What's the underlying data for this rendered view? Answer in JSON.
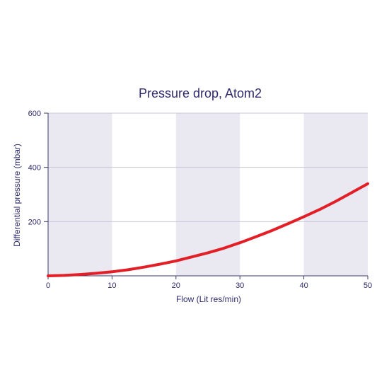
{
  "chart_data": {
    "type": "line",
    "title": "Pressure drop, Atom2",
    "xlabel": "Flow (Lit res/min)",
    "ylabel": "Differential pressure (mbar)",
    "xlim": [
      0,
      50
    ],
    "ylim": [
      0,
      600
    ],
    "x_ticks": [
      0,
      10,
      20,
      30,
      40,
      50
    ],
    "x_tick_labels": [
      "0",
      "10",
      "20",
      "30",
      "40",
      "50"
    ],
    "y_ticks": [
      200,
      400,
      600
    ],
    "y_tick_labels": [
      "200",
      "400",
      "600"
    ],
    "grid": "horizontal",
    "shaded_bands": [
      [
        0,
        10
      ],
      [
        20,
        30
      ],
      [
        40,
        50
      ]
    ],
    "colors": {
      "band": "#eae8f1",
      "grid": "#c9c7d6",
      "axis": "#3a3a6e",
      "text": "#2e2a6b",
      "line": "#e21f26"
    },
    "series": [
      {
        "x": [
          0,
          2.5,
          5,
          7.5,
          10,
          12.5,
          15,
          17.5,
          20,
          22.5,
          25,
          27.5,
          30,
          32.5,
          35,
          37.5,
          40,
          42.5,
          45,
          47.5,
          50
        ],
        "values": [
          0,
          1.5,
          5,
          9.5,
          15,
          22.5,
          32,
          43,
          55,
          70,
          85,
          102,
          122,
          144,
          167,
          192,
          218,
          245,
          275,
          307,
          340
        ]
      }
    ]
  }
}
